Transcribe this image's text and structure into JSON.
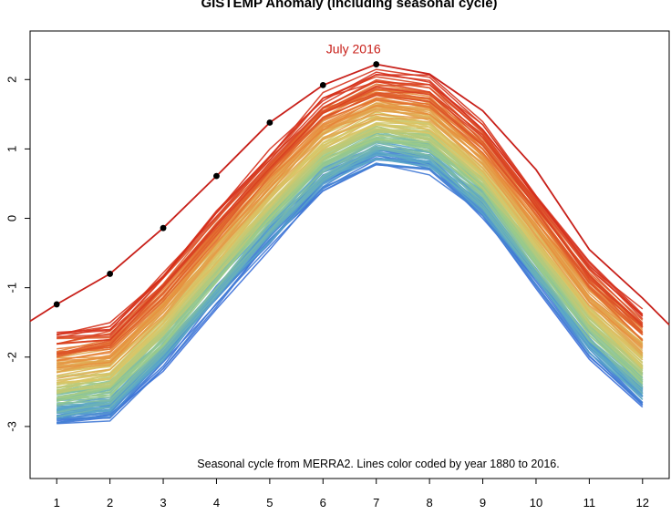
{
  "chart_data": {
    "type": "line",
    "title": "GISTEMP Anomaly (including seasonal cycle)",
    "xlabel": "",
    "ylabel": "",
    "x": [
      1,
      2,
      3,
      4,
      5,
      6,
      7,
      8,
      9,
      10,
      11,
      12
    ],
    "xlim": [
      0.5,
      12.5
    ],
    "ylim": [
      -3.75,
      2.7
    ],
    "xticks": [
      1,
      2,
      3,
      4,
      5,
      6,
      7,
      8,
      9,
      10,
      11,
      12
    ],
    "yticks": [
      -3,
      -2,
      -1,
      0,
      1,
      2
    ],
    "grid": false,
    "year_range": [
      1880,
      2016
    ],
    "color_scale": [
      "#3a6fd8",
      "#5aa8c8",
      "#9acb8a",
      "#d9c868",
      "#e88a3a",
      "#d42a1a"
    ],
    "seasonal_cycle": [
      -2.45,
      -2.35,
      -1.6,
      -0.7,
      0.15,
      0.95,
      1.3,
      1.2,
      0.55,
      -0.45,
      -1.45,
      -2.15
    ],
    "range": {
      "cold_offset": -0.45,
      "warm_offset": 0.75
    },
    "highlight_series": {
      "name": "2016",
      "color": "#c8201a",
      "values": [
        -1.24,
        -0.8,
        -0.14,
        0.61,
        1.38,
        1.92,
        2.22,
        2.08,
        1.55,
        0.7,
        -0.45,
        -1.15
      ],
      "marked_points": 7
    },
    "annotation": {
      "text": "July 2016",
      "color": "#c8201a",
      "at": [
        7,
        2.22
      ]
    },
    "note": "Seasonal cycle from MERRA2. Lines color coded by year 1880 to 2016."
  }
}
